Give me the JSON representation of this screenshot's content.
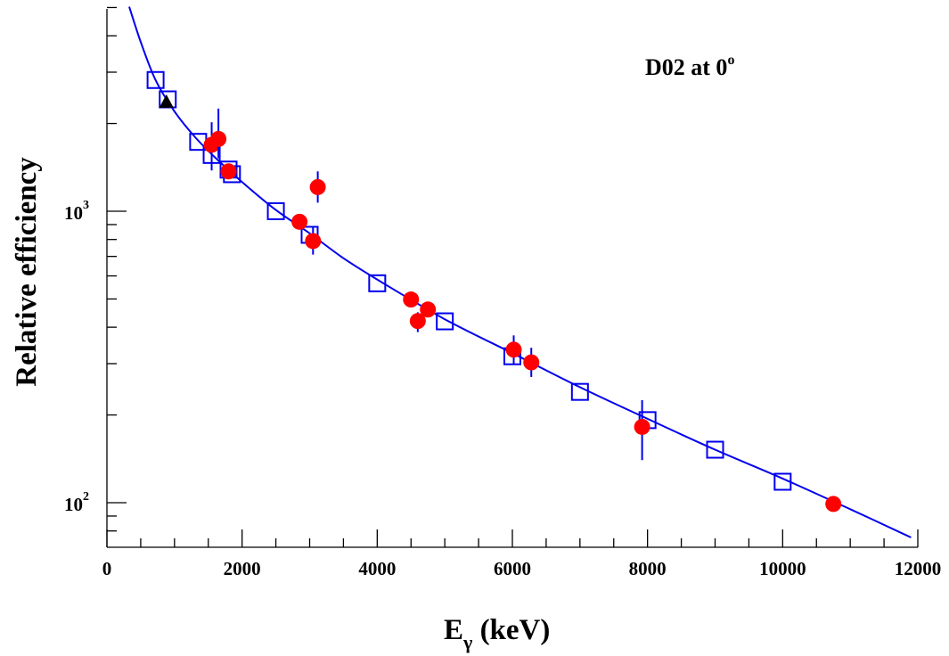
{
  "chart_data": {
    "type": "scatter",
    "title": "",
    "annotation": {
      "main": "D02 at 0",
      "superscript": "o"
    },
    "xlabel": {
      "main": "E",
      "subscript": "γ",
      "suffix": " (keV)"
    },
    "ylabel": "Relative efficiency",
    "xlim": [
      0,
      12000
    ],
    "ylim": [
      76,
      5030
    ],
    "y_scale": "log",
    "grid": false,
    "x_ticks": [
      0,
      2000,
      4000,
      6000,
      8000,
      10000,
      12000
    ],
    "x_tick_labels": [
      "0",
      "2000",
      "4000",
      "6000",
      "8000",
      "10000",
      "12000"
    ],
    "y_ticks": [
      100,
      1000
    ],
    "y_tick_labels": [
      {
        "base": "10",
        "exp": "2"
      },
      {
        "base": "10",
        "exp": "3"
      }
    ],
    "series": [
      {
        "marker": "open-square",
        "color": "#0000ee",
        "points": [
          {
            "x": 720,
            "y": 2820
          },
          {
            "x": 900,
            "y": 2420
          },
          {
            "x": 1350,
            "y": 1730
          },
          {
            "x": 1550,
            "y": 1560
          },
          {
            "x": 1800,
            "y": 1390,
            "err": 35
          },
          {
            "x": 1850,
            "y": 1340
          },
          {
            "x": 2500,
            "y": 1000
          },
          {
            "x": 3000,
            "y": 830
          },
          {
            "x": 4000,
            "y": 566
          },
          {
            "x": 5000,
            "y": 419
          },
          {
            "x": 6000,
            "y": 318
          },
          {
            "x": 7000,
            "y": 240
          },
          {
            "x": 8000,
            "y": 192
          },
          {
            "x": 9000,
            "y": 152
          },
          {
            "x": 10000,
            "y": 118
          }
        ]
      },
      {
        "marker": "filled-circle",
        "color": "#ff0000",
        "error_color": "#0000ee",
        "points": [
          {
            "x": 1550,
            "y": 1690,
            "err_lo": 1380,
            "err_hi": 2020
          },
          {
            "x": 1650,
            "y": 1770,
            "err_lo": 1520,
            "err_hi": 2250
          },
          {
            "x": 1800,
            "y": 1370
          },
          {
            "x": 2850,
            "y": 920
          },
          {
            "x": 3050,
            "y": 790,
            "err_lo": 710,
            "err_hi": 880
          },
          {
            "x": 3120,
            "y": 1210,
            "err_lo": 1070,
            "err_hi": 1370
          },
          {
            "x": 4500,
            "y": 498
          },
          {
            "x": 4600,
            "y": 420,
            "err_lo": 385,
            "err_hi": 450
          },
          {
            "x": 4750,
            "y": 460
          },
          {
            "x": 6020,
            "y": 335,
            "err_lo": 300,
            "err_hi": 375
          },
          {
            "x": 6280,
            "y": 303,
            "err_lo": 270,
            "err_hi": 340
          },
          {
            "x": 7920,
            "y": 182,
            "err_lo": 140,
            "err_hi": 225
          },
          {
            "x": 10750,
            "y": 99
          }
        ]
      },
      {
        "marker": "filled-triangle",
        "color": "#000000",
        "points": [
          {
            "x": 880,
            "y": 2380
          }
        ]
      }
    ],
    "fit_curve": {
      "color": "#0000ee",
      "points": [
        {
          "x": 330,
          "y": 5030
        },
        {
          "x": 500,
          "y": 3810
        },
        {
          "x": 720,
          "y": 2820
        },
        {
          "x": 1000,
          "y": 2200
        },
        {
          "x": 1300,
          "y": 1800
        },
        {
          "x": 1600,
          "y": 1530
        },
        {
          "x": 2000,
          "y": 1260
        },
        {
          "x": 2500,
          "y": 1010
        },
        {
          "x": 3000,
          "y": 840
        },
        {
          "x": 3500,
          "y": 690
        },
        {
          "x": 4000,
          "y": 583
        },
        {
          "x": 5000,
          "y": 426
        },
        {
          "x": 6000,
          "y": 326
        },
        {
          "x": 7000,
          "y": 249
        },
        {
          "x": 8000,
          "y": 194
        },
        {
          "x": 9000,
          "y": 152
        },
        {
          "x": 10000,
          "y": 121
        },
        {
          "x": 11000,
          "y": 95
        },
        {
          "x": 11900,
          "y": 76
        }
      ]
    }
  }
}
